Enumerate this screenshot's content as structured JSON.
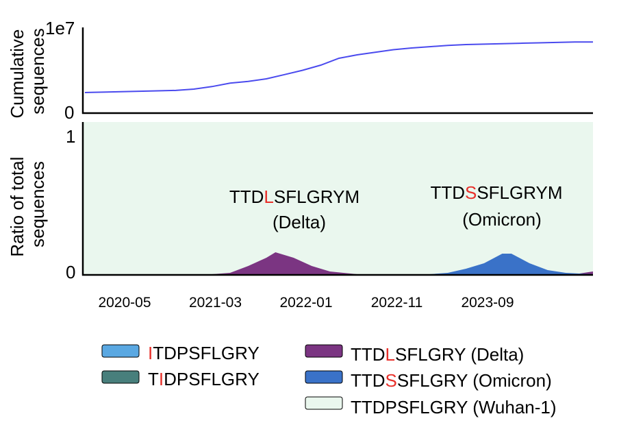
{
  "chart_data": [
    {
      "type": "line",
      "ylabel": "Cumulative sequences",
      "y_scale_label": "1e7",
      "yticks": [
        "0"
      ],
      "ylim": [
        0,
        1
      ],
      "series": [
        {
          "color": "#4a4aee",
          "x": [
            0,
            2,
            4,
            6,
            8,
            10,
            12,
            14,
            16,
            18,
            20,
            22,
            24,
            26,
            28,
            30,
            32,
            34,
            36,
            38,
            40,
            42,
            44,
            46,
            48,
            50,
            52,
            54,
            56
          ],
          "values": [
            0.24,
            0.245,
            0.25,
            0.255,
            0.26,
            0.265,
            0.28,
            0.31,
            0.35,
            0.37,
            0.4,
            0.45,
            0.5,
            0.56,
            0.64,
            0.68,
            0.71,
            0.74,
            0.76,
            0.775,
            0.79,
            0.8,
            0.805,
            0.81,
            0.815,
            0.82,
            0.825,
            0.83,
            0.83
          ]
        }
      ]
    },
    {
      "type": "area",
      "ylabel": "Ratio of total sequences",
      "yticks": [
        "0",
        "1"
      ],
      "ylim": [
        0,
        1
      ],
      "xticks": [
        "2020-05",
        "2021-03",
        "2022-01",
        "2022-11",
        "2023-09"
      ],
      "background_color": "#eaf7ee",
      "annotations": [
        {
          "prefix": "TTD",
          "highlight": "L",
          "suffix": "SFLGRYM",
          "variant": "(Delta)"
        },
        {
          "prefix": "TTD",
          "highlight": "S",
          "suffix": "SFLGRYM",
          "variant": "(Omicron)"
        }
      ],
      "highlight_color": "#e8302a",
      "series": [
        {
          "color": "#7b3582",
          "x": [
            0,
            14,
            16,
            18,
            20,
            21,
            23,
            25,
            27,
            30,
            38,
            42,
            44,
            46,
            48,
            50,
            52,
            54,
            56
          ],
          "values": [
            0,
            0,
            0.01,
            0.06,
            0.12,
            0.16,
            0.12,
            0.06,
            0.02,
            0,
            0,
            0,
            0.01,
            0.02,
            0.03,
            0.02,
            0.01,
            0,
            0.02
          ]
        },
        {
          "color": "#3a72c8",
          "x": [
            0,
            38,
            40,
            42,
            44,
            46,
            47,
            49,
            51,
            53,
            56
          ],
          "values": [
            0,
            0,
            0.01,
            0.04,
            0.08,
            0.15,
            0.15,
            0.08,
            0.03,
            0.01,
            0
          ]
        }
      ]
    }
  ],
  "legend": {
    "items": [
      {
        "pre": "",
        "hi": "I",
        "post": "TDPSFLGRY",
        "color": "#5aa8e2"
      },
      {
        "pre": "T",
        "hi": "I",
        "post": "DPSFLGRY",
        "color": "#487f7c"
      },
      {
        "pre": "TTD",
        "hi": "L",
        "post": "SFLGRY (Delta)",
        "color": "#7b3582"
      },
      {
        "pre": "TTD",
        "hi": "S",
        "post": "SFLGRY (Omicron)",
        "color": "#3a72c8"
      },
      {
        "pre": "TTDPSFLGRY (Wuhan-1)",
        "hi": "",
        "post": "",
        "color": "#eaf7ee"
      }
    ]
  }
}
